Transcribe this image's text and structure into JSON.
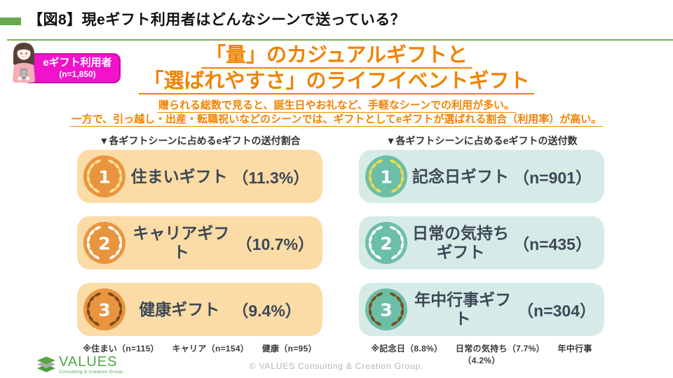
{
  "page": {
    "title": "【図8】現eギフト利用者はどんなシーンで送っている？",
    "accent_green": "#69A84F",
    "rule_green": "#7CAF55"
  },
  "badge": {
    "label": "eギフト利用者",
    "sample": "(n=1,850)",
    "bg_color": "#F112CB",
    "border_color": "#C90BA8",
    "illustration": "woman-holding-smartphone-icon"
  },
  "headline": {
    "line1": "「量」のカジュアルギフトと",
    "line2": "「選ばれやすさ」のライフイベントギフト",
    "color": "#F08300"
  },
  "subtext": {
    "line1": "贈られる総数で見ると、誕生日やお礼など、手軽なシーンでの利用が多い。",
    "line2": "一方で、引っ越し・出産・転職祝いなどのシーンでは、ギフトとしてeギフトが選ばれる割合（利用率）が高い。"
  },
  "columns": [
    {
      "header": "▼各ギフトシーンに占めるeギフトの送付割合",
      "theme": {
        "row_bg": "#FBDCA6",
        "medal": "#E9953F"
      },
      "rows": [
        {
          "rank": "1",
          "label": "住まいギフト",
          "value": "（11.3%）",
          "wreath": "#F8E194"
        },
        {
          "rank": "2",
          "label": "キャリアギフト",
          "value": "（10.7%）",
          "wreath": "#FFFFFF"
        },
        {
          "rank": "3",
          "label": "健康ギフト",
          "value": "（9.4%）",
          "wreath": "#7C4A1D"
        }
      ],
      "footnote": "※住まい（n=115）　　キャリア（n=154）　　健康（n=95）"
    },
    {
      "header": "▼各ギフトシーンに占めるeギフトの送付数",
      "theme": {
        "row_bg": "#D6EBE8",
        "medal": "#6CBFA7"
      },
      "rows": [
        {
          "rank": "1",
          "label": "記念日ギフト",
          "value": "（n=901）",
          "wreath": "#EFD94F"
        },
        {
          "rank": "2",
          "label": "日常の気持ち\nギフト",
          "value": "（n=435）",
          "wreath": "#FFFFFF"
        },
        {
          "rank": "3",
          "label": "年中行事ギフト",
          "value": "（n=304）",
          "wreath": "#7C4A1D"
        }
      ],
      "footnote": "※記念日（8.8%）　　日常の気持ち（7.7%）　　年中行事（4.2%）"
    }
  ],
  "chart_data": [
    {
      "type": "table",
      "title": "各ギフトシーンに占めるeギフトの送付割合",
      "categories": [
        "住まいギフト",
        "キャリアギフト",
        "健康ギフト"
      ],
      "values": [
        11.3,
        10.7,
        9.4
      ],
      "unit": "%",
      "sample_sizes": {
        "住まい": 115,
        "キャリア": 154,
        "健康": 95
      }
    },
    {
      "type": "table",
      "title": "各ギフトシーンに占めるeギフトの送付数",
      "categories": [
        "記念日ギフト",
        "日常の気持ちギフト",
        "年中行事ギフト"
      ],
      "values": [
        901,
        435,
        304
      ],
      "unit": "n",
      "share_percent": {
        "記念日": 8.8,
        "日常の気持ち": 7.7,
        "年中行事": 4.2
      }
    }
  ],
  "footer": {
    "logo_text": "VALUES",
    "logo_tagline": "Consulting & Creation Group",
    "copyright": "© VALUES Consulting & Creation Group."
  }
}
